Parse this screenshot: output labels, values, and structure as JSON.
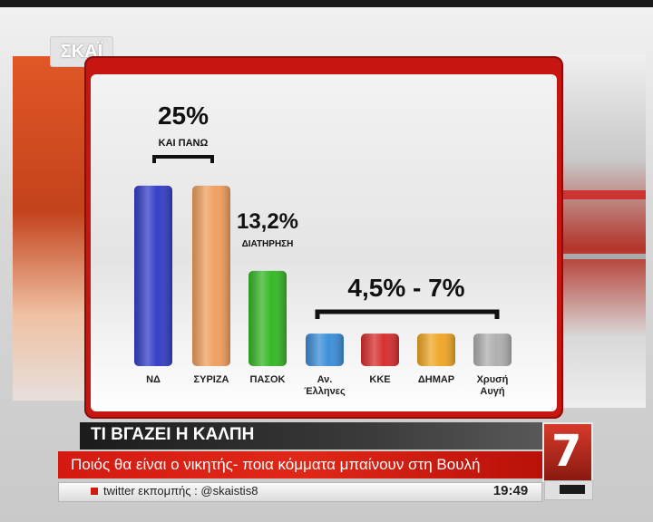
{
  "channel": {
    "logo_text": "ΣΚΑΪ",
    "number_badge": "7"
  },
  "lower_third": {
    "title": "ΤΙ ΒΓΑΖΕΙ Η ΚΑΛΠΗ",
    "subtitle": "Ποιός θα είναι ο νικητής- ποια κόμματα μπαίνουν στη Βουλή",
    "ticker": "twitter εκπομπής : @skaistis8",
    "time": "19:49"
  },
  "colors": {
    "frame_red": "#c71612",
    "nd": "#3540c8",
    "syriza": "#f0a060",
    "pasok": "#38b828",
    "anel": "#3d8fd8",
    "kke": "#d83030",
    "dimar": "#f0a828",
    "xa": "#b0b0b0"
  },
  "chart_data": {
    "type": "bar",
    "categories": [
      "ΝΔ",
      "ΣΥΡΙΖΑ",
      "ΠΑΣΟΚ",
      "Αν. Έλληνες",
      "ΚΚΕ",
      "ΔΗΜΑΡ",
      "Χρυσή Αυγή"
    ],
    "values": [
      25,
      25,
      13.2,
      4.5,
      4.5,
      4.5,
      4.5
    ],
    "annotations": [
      {
        "value_text": "25%",
        "caption": "ΚΑΙ ΠΑΝΩ",
        "applies_to": [
          "ΝΔ",
          "ΣΥΡΙΖΑ"
        ]
      },
      {
        "value_text": "13,2%",
        "caption": "ΔΙΑΤΗΡΗΣΗ",
        "applies_to": [
          "ΠΑΣΟΚ"
        ]
      },
      {
        "value_text": "4,5% - 7%",
        "caption": "",
        "applies_to": [
          "Αν. Έλληνες",
          "ΚΚΕ",
          "ΔΗΜΑΡ",
          "Χρυσή Αυγή"
        ]
      }
    ],
    "ylim": [
      0,
      27
    ],
    "grid": false,
    "title": ""
  }
}
